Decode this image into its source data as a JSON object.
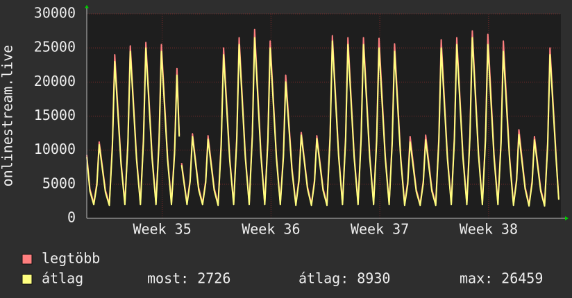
{
  "chart_data": {
    "type": "line",
    "ylabel": "onlinestream.live",
    "xlim": [
      0,
      30.5
    ],
    "xticks": [
      {
        "value": 4.85,
        "label": "Week 35"
      },
      {
        "value": 11.85,
        "label": "Week 36"
      },
      {
        "value": 18.85,
        "label": "Week 37"
      },
      {
        "value": 25.85,
        "label": "Week 38"
      }
    ],
    "ylim": [
      0,
      30000
    ],
    "yticks": [
      0,
      5000,
      10000,
      15000,
      20000,
      25000,
      30000
    ],
    "grid": true,
    "x": [
      0,
      0.2,
      0.45,
      0.65,
      0.8,
      1.2,
      1.45,
      1.65,
      1.8,
      2.2,
      2.45,
      2.65,
      2.8,
      3.2,
      3.45,
      3.65,
      3.8,
      4.2,
      4.45,
      4.65,
      4.8,
      5.2,
      5.45,
      5.65,
      5.8,
      5.95,
      6.0,
      6.1,
      6.45,
      6.65,
      6.8,
      7.2,
      7.45,
      7.65,
      7.8,
      8.2,
      8.45,
      8.65,
      8.8,
      9.2,
      9.45,
      9.65,
      9.8,
      10.2,
      10.45,
      10.65,
      10.8,
      11.2,
      11.45,
      11.65,
      11.8,
      12.2,
      12.45,
      12.65,
      12.8,
      13.2,
      13.45,
      13.65,
      13.8,
      14.2,
      14.45,
      14.65,
      14.8,
      15.2,
      15.45,
      15.65,
      15.8,
      16.2,
      16.45,
      16.65,
      16.8,
      17.2,
      17.45,
      17.65,
      17.8,
      18.2,
      18.45,
      18.65,
      18.8,
      19.2,
      19.45,
      19.65,
      19.8,
      20.2,
      20.45,
      20.65,
      20.8,
      21.2,
      21.45,
      21.65,
      21.8,
      22.2,
      22.45,
      22.65,
      22.8,
      23.2,
      23.45,
      23.65,
      23.8,
      24.2,
      24.45,
      24.65,
      24.8,
      25.2,
      25.45,
      25.65,
      25.8,
      26.2,
      26.45,
      26.65,
      26.8,
      27.2,
      27.45,
      27.65,
      27.8,
      28.2,
      28.45,
      28.65,
      28.8,
      29.2,
      29.45,
      29.65,
      29.8,
      30.2,
      30.36
    ],
    "series": [
      {
        "name": "legtöbb",
        "color": "#ff7f7f",
        "values": [
          9300,
          4300,
          2200,
          5200,
          11200,
          4100,
          2100,
          10900,
          24000,
          8400,
          2200,
          11500,
          25300,
          9000,
          2200,
          11800,
          25800,
          9200,
          2200,
          11500,
          25500,
          9000,
          2200,
          10000,
          22000,
          12200,
          null,
          8100,
          2200,
          5700,
          12400,
          4500,
          2200,
          5500,
          12100,
          4400,
          2100,
          11300,
          25000,
          8800,
          2200,
          12000,
          26500,
          9300,
          2200,
          12400,
          27700,
          9700,
          2200,
          11800,
          26000,
          9200,
          2200,
          9500,
          21000,
          7400,
          2100,
          5800,
          12600,
          4600,
          2100,
          5600,
          12100,
          4400,
          2100,
          12200,
          26800,
          9500,
          2200,
          12000,
          26500,
          9300,
          2200,
          12000,
          26500,
          9300,
          2200,
          11900,
          26400,
          9200,
          2200,
          11500,
          25600,
          9000,
          2100,
          5400,
          12000,
          4200,
          2100,
          5500,
          12200,
          4300,
          2100,
          11800,
          26200,
          9200,
          2200,
          12000,
          26500,
          9300,
          2200,
          12400,
          27500,
          9700,
          2200,
          12000,
          27000,
          9400,
          2200,
          11500,
          26000,
          9000,
          2100,
          5800,
          13000,
          4600,
          2000,
          5500,
          12000,
          4300,
          2000,
          11300,
          25000,
          8800,
          2900
        ]
      },
      {
        "name": "átlag",
        "color": "#ffff80",
        "values": [
          9000,
          4000,
          2000,
          4900,
          10800,
          3800,
          1900,
          10400,
          23000,
          8000,
          2000,
          11000,
          24500,
          8600,
          2000,
          11300,
          25000,
          8800,
          2000,
          11000,
          24500,
          8600,
          2000,
          9500,
          21000,
          12000,
          null,
          7800,
          2000,
          5400,
          12000,
          4200,
          2000,
          5200,
          11600,
          4100,
          1900,
          10800,
          24000,
          8400,
          2000,
          11500,
          25500,
          8900,
          2000,
          11900,
          26500,
          9300,
          2000,
          11300,
          25000,
          8800,
          2000,
          9000,
          20000,
          7000,
          1900,
          5500,
          12200,
          4300,
          1900,
          5300,
          11700,
          4100,
          1900,
          11700,
          26000,
          9100,
          2000,
          11500,
          25500,
          8900,
          2000,
          11500,
          25500,
          8900,
          2000,
          11300,
          25000,
          8800,
          2000,
          11000,
          24500,
          8600,
          1900,
          5000,
          11200,
          3900,
          1900,
          5200,
          11500,
          4000,
          1900,
          11300,
          25000,
          8800,
          2000,
          11500,
          25500,
          8900,
          2000,
          11900,
          26500,
          9300,
          2000,
          11500,
          25500,
          8900,
          2000,
          11000,
          24500,
          8600,
          1900,
          5500,
          12300,
          4300,
          1800,
          5200,
          11500,
          4000,
          1800,
          10800,
          24000,
          8400,
          2726
        ]
      }
    ],
    "stats": [
      {
        "label": "most:",
        "value": 2726
      },
      {
        "label": "átlag:",
        "value": 8930
      },
      {
        "label": "max:",
        "value": 26459
      }
    ]
  }
}
